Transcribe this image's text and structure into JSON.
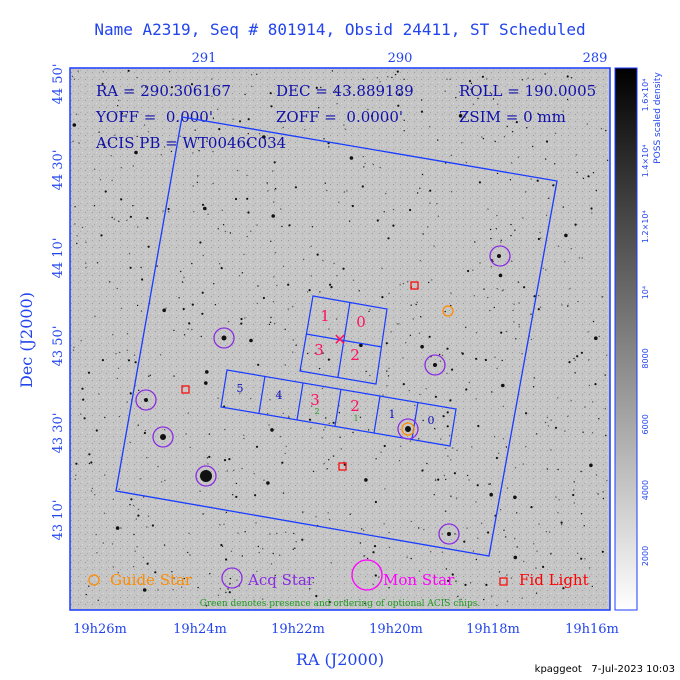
{
  "title": "Name A2319, Seq # 801914, Obsid 24411, ST Scheduled",
  "footer": "kpaggeot   7-Jul-2023 10:03",
  "colors": {
    "frame": "#1a3cff",
    "text": "#2244ee",
    "guide": "#ff8c00",
    "acq": "#8a2be2",
    "mon": "#ff00ff",
    "fid": "#ff0000",
    "chip_red": "#ff1060",
    "chip_blue": "#1010c0",
    "chip_green": "#229922"
  },
  "info": {
    "ra": "RA = 290.306167",
    "dec": "DEC = 43.889189",
    "roll": "ROLL = 190.0005",
    "yoff": "YOFF =  0.000'",
    "zoff": "ZOFF =  0.0000'",
    "zsim": "ZSIM = 0 mm",
    "acis_pb": "ACIS PB = WT0046C034"
  },
  "chart_data": {
    "type": "scatter",
    "title": "Name A2319, Seq # 801914, Obsid 24411, ST Scheduled",
    "xlabel": "RA (J2000)",
    "ylabel": "Dec (J2000)",
    "top_ticks": [
      "291",
      "290",
      "289"
    ],
    "bottom_ticks": [
      "19h26m",
      "19h24m",
      "19h22m",
      "19h20m",
      "19h18m",
      "19h16m"
    ],
    "left_ticks": [
      "44 50'",
      "44 30'",
      "44 10'",
      "43 50'",
      "43 30'",
      "43 10'"
    ],
    "colorbar_label": "POSS scaled density",
    "colorbar_ticks": [
      "2000",
      "4000",
      "6000",
      "8000",
      "10⁴",
      "1.2×10⁴",
      "1.4×10⁴",
      "1.6×10⁴"
    ],
    "acis_i_chips": [
      "0",
      "1",
      "2",
      "3"
    ],
    "acis_s_chips": [
      "5",
      "4",
      "3",
      "2",
      "1",
      "0"
    ],
    "optional_chip_markers": [
      "2",
      "1"
    ],
    "legend": [
      "Guide Star",
      "Acq Star",
      "Mon Star",
      "Fid Light"
    ],
    "legend_note": "Green denotes presence and ordering of optional ACIS chips."
  }
}
